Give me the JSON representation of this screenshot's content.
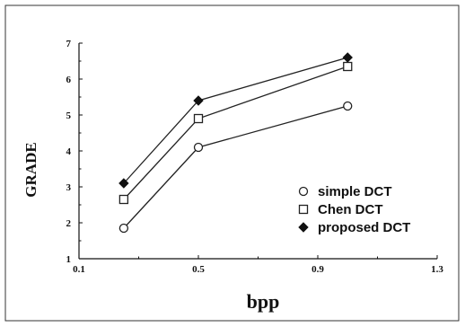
{
  "chart_data": {
    "type": "line",
    "title": "",
    "xlabel": "bpp",
    "ylabel": "GRADE",
    "xlim": [
      0.1,
      1.3
    ],
    "ylim": [
      1,
      7
    ],
    "xticks": [
      0.1,
      0.5,
      0.9,
      1.3
    ],
    "xtick_labels": [
      "0.1",
      "0.5",
      "0.9",
      "1.3"
    ],
    "yticks": [
      1,
      2,
      3,
      4,
      5,
      6,
      7
    ],
    "ytick_labels": [
      "1",
      "2",
      "3",
      "4",
      "5",
      "6",
      "7"
    ],
    "grid": false,
    "legend_position": "bottom-right",
    "series": [
      {
        "name": "simple DCT",
        "marker": "open-circle",
        "x": [
          0.25,
          0.5,
          1.0
        ],
        "y": [
          1.85,
          4.1,
          5.25
        ]
      },
      {
        "name": "Chen DCT",
        "marker": "open-square",
        "x": [
          0.25,
          0.5,
          1.0
        ],
        "y": [
          2.65,
          4.9,
          6.35
        ]
      },
      {
        "name": "proposed DCT",
        "marker": "filled-diamond",
        "x": [
          0.25,
          0.5,
          1.0
        ],
        "y": [
          3.1,
          5.4,
          6.6
        ]
      }
    ],
    "colors": {
      "line": "#222222",
      "frame": "#111111",
      "border": "#333333"
    }
  }
}
